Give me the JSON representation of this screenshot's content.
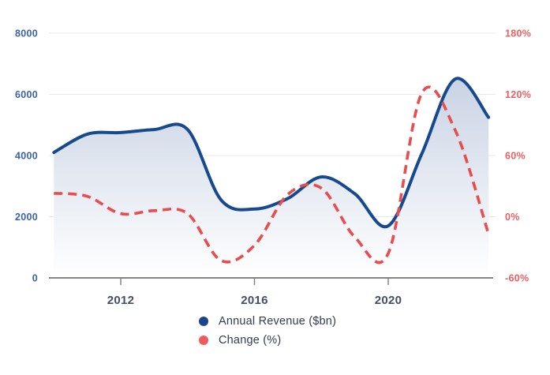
{
  "chart_data": {
    "type": "line",
    "dual_axis": true,
    "title": "",
    "x": [
      2010,
      2011,
      2012,
      2013,
      2014,
      2015,
      2016,
      2017,
      2018,
      2019,
      2020,
      2021,
      2022,
      2023
    ],
    "series": [
      {
        "name": "Annual Revenue ($bn)",
        "yaxis": "left",
        "style": "solid-area",
        "color": "#17498f",
        "values": [
          4100,
          4700,
          4750,
          4850,
          4850,
          2550,
          2250,
          2600,
          3300,
          2750,
          1700,
          4050,
          6500,
          5250
        ]
      },
      {
        "name": "Change (%)",
        "yaxis": "right",
        "style": "dashed",
        "color": "#e94c4e",
        "values": [
          23,
          20,
          3,
          6,
          3,
          -43,
          -28,
          22,
          28,
          -20,
          -36,
          121,
          85,
          -17
        ]
      }
    ],
    "left_axis": {
      "range": [
        0,
        8000
      ],
      "tick_labels": [
        "8000",
        "6000",
        "4000",
        "2000",
        "0"
      ],
      "tick_values": [
        8000,
        6000,
        4000,
        2000,
        0
      ],
      "label_color": "#3a62ad"
    },
    "right_axis": {
      "range": [
        -60,
        180
      ],
      "tick_labels": [
        "180%",
        "120%",
        "60%",
        "0%",
        "-60%"
      ],
      "tick_values": [
        180,
        120,
        60,
        0,
        -60
      ],
      "label_color": "#f05e60"
    },
    "x_axis": {
      "tick_labels": [
        "2012",
        "2016",
        "2020"
      ],
      "tick_values": [
        2012,
        2016,
        2020
      ],
      "label_color": "#454e66"
    },
    "grid": true,
    "legend": {
      "position": "bottom-center",
      "items": [
        {
          "label": "Annual Revenue ($bn)",
          "color": "#1c448c"
        },
        {
          "label": "Change (%)",
          "color": "#f05a5f"
        }
      ]
    },
    "palette": {
      "grid": "#e8e9ee",
      "axis_line": "#858585",
      "fill_top": "#bdc9de",
      "fill_bottom": "#ffffff",
      "legend_text": "#333b52"
    }
  }
}
